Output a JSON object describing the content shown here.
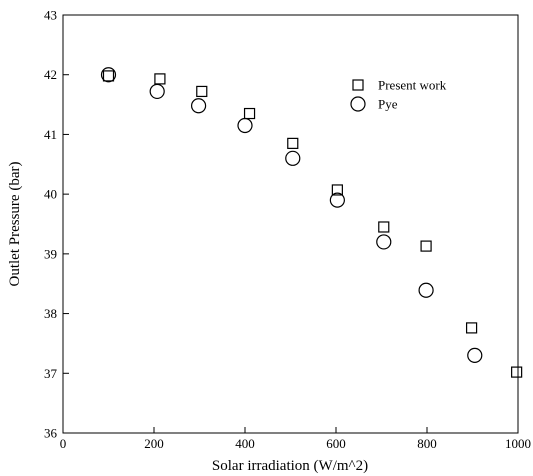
{
  "chart_data": {
    "type": "scatter",
    "title": "",
    "xlabel": "Solar irradiation (W/m^2)",
    "ylabel": "Outlet Pressure (bar)",
    "xlim": [
      0,
      1000
    ],
    "ylim": [
      36,
      43
    ],
    "xticks": [
      "0",
      "200",
      "400",
      "600",
      "800",
      "1000"
    ],
    "yticks": [
      "36",
      "37",
      "38",
      "39",
      "40",
      "41",
      "42",
      "43"
    ],
    "grid": false,
    "legend_position": "top-right",
    "series": [
      {
        "name": "Present work",
        "marker": "square",
        "color": "#000000",
        "points": [
          {
            "x": 100,
            "y": 41.98
          },
          {
            "x": 213,
            "y": 41.93
          },
          {
            "x": 305,
            "y": 41.72
          },
          {
            "x": 410,
            "y": 41.35
          },
          {
            "x": 505,
            "y": 40.85
          },
          {
            "x": 603,
            "y": 40.07
          },
          {
            "x": 705,
            "y": 39.45
          },
          {
            "x": 798,
            "y": 39.13
          },
          {
            "x": 898,
            "y": 37.76
          },
          {
            "x": 997,
            "y": 37.02
          }
        ]
      },
      {
        "name": "Pye",
        "marker": "circle",
        "color": "#000000",
        "points": [
          {
            "x": 100,
            "y": 42.0
          },
          {
            "x": 207,
            "y": 41.72
          },
          {
            "x": 298,
            "y": 41.48
          },
          {
            "x": 400,
            "y": 41.15
          },
          {
            "x": 505,
            "y": 40.6
          },
          {
            "x": 603,
            "y": 39.9
          },
          {
            "x": 705,
            "y": 39.2
          },
          {
            "x": 798,
            "y": 38.39
          },
          {
            "x": 905,
            "y": 37.3
          }
        ]
      }
    ]
  }
}
